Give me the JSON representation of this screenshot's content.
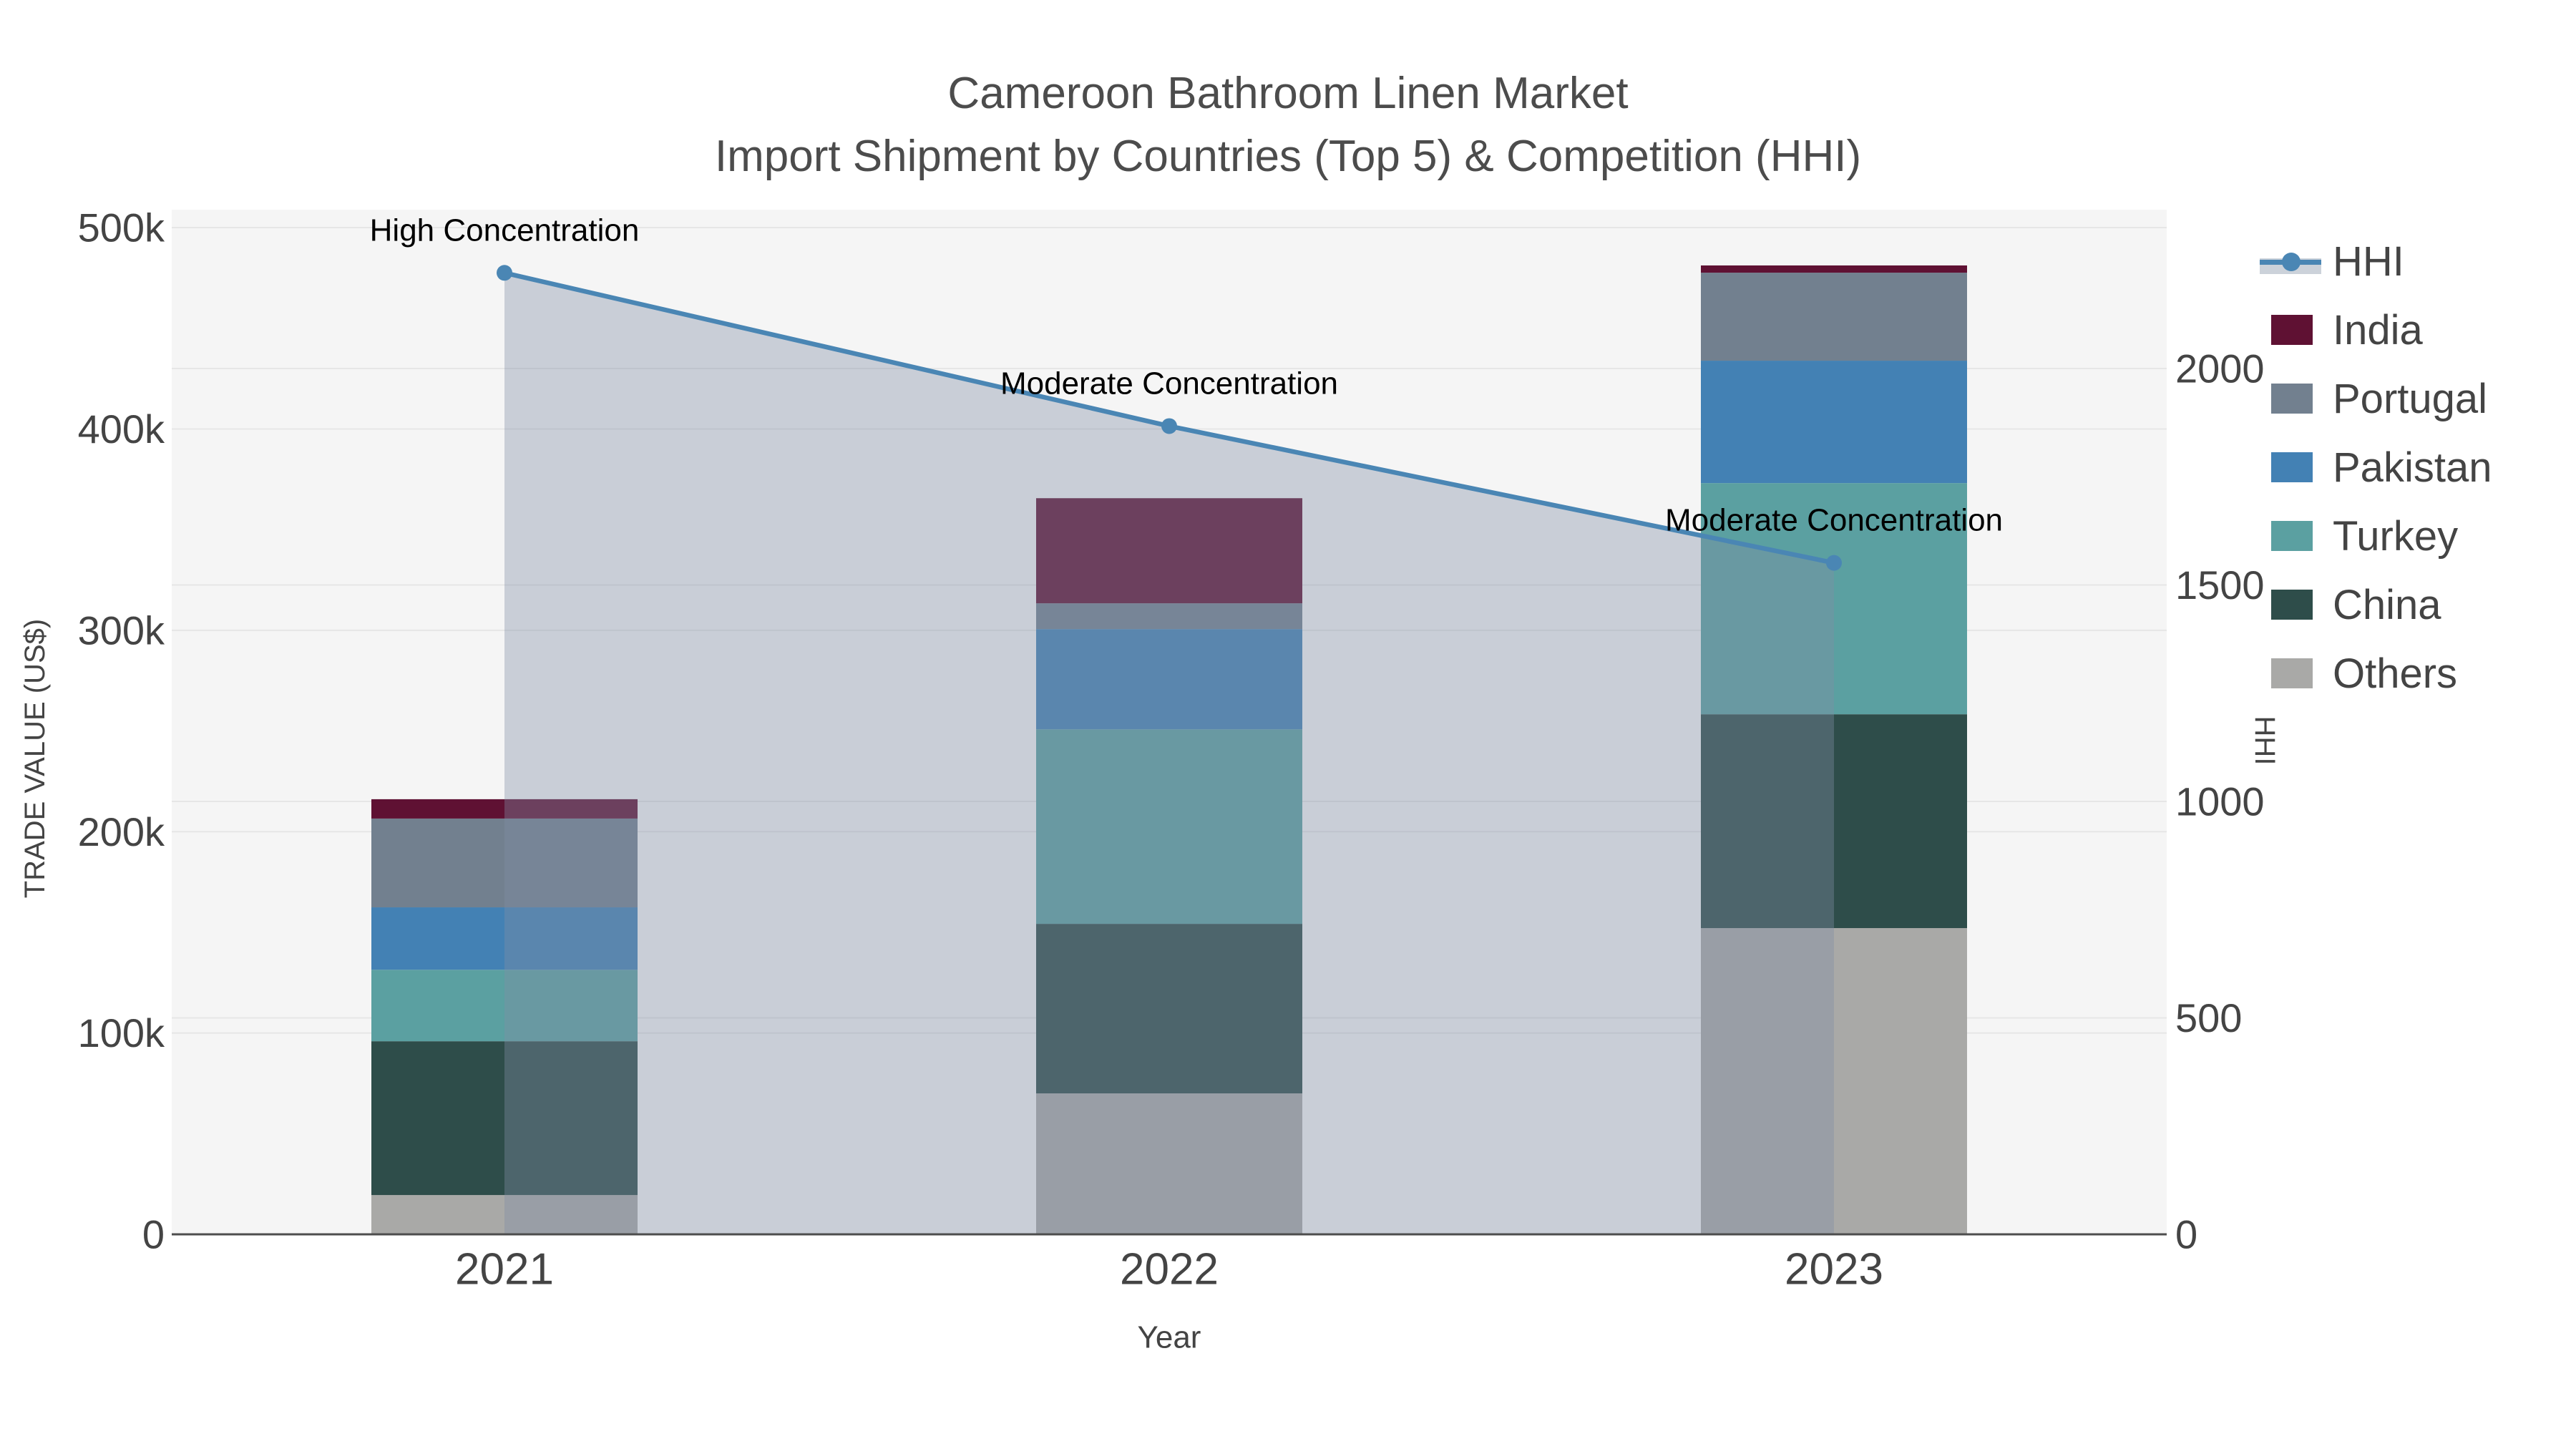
{
  "title": {
    "line1": "Cameroon Bathroom Linen Market",
    "line2": "Import Shipment by Countries (Top 5) & Competition (HHI)"
  },
  "x_axis": {
    "title": "Year",
    "ticks": [
      "2021",
      "2022",
      "2023"
    ]
  },
  "y_left": {
    "title": "TRADE VALUE (US$)",
    "tick_labels": [
      "0",
      "100k",
      "200k",
      "300k",
      "400k",
      "500k"
    ],
    "tick_values_k": [
      0,
      100,
      200,
      300,
      400,
      500
    ]
  },
  "y_right": {
    "title": "HHI",
    "tick_labels": [
      "0",
      "500",
      "1000",
      "1500",
      "2000"
    ],
    "tick_values": [
      0,
      500,
      1000,
      1500,
      2000
    ]
  },
  "legend": {
    "items": [
      {
        "label": "HHI",
        "type": "line-marker",
        "color": "#4a86b4"
      },
      {
        "label": "India",
        "type": "swatch",
        "color": "#5f1133"
      },
      {
        "label": "Portugal",
        "type": "swatch",
        "color": "#72808f"
      },
      {
        "label": "Pakistan",
        "type": "swatch",
        "color": "#4381b4"
      },
      {
        "label": "Turkey",
        "type": "swatch",
        "color": "#5ba0a1"
      },
      {
        "label": "China",
        "type": "swatch",
        "color": "#2e4d4a"
      },
      {
        "label": "Others",
        "type": "swatch",
        "color": "#a9a9a7"
      }
    ]
  },
  "annotations": [
    {
      "text": "High Concentration",
      "year": "2021"
    },
    {
      "text": "Moderate Concentration",
      "year": "2022"
    },
    {
      "text": "Moderate Concentration",
      "year": "2023"
    }
  ],
  "colors": {
    "plot_bg": "#f5f5f5",
    "grid": "#e6e6e6",
    "axis_line": "#4d4d4d",
    "tick_text": "#444444",
    "title_text": "#4c4c4c",
    "annotation_text": "#000000",
    "hhi_line": "#4a86b4",
    "hhi_fill": "rgba(128,142,165,0.38)"
  },
  "chart_data": [
    {
      "type": "bar",
      "stacked": true,
      "note": "series listed bottom-to-top of stack; values in thousand US$",
      "categories": [
        "2021",
        "2022",
        "2023"
      ],
      "series": [
        {
          "name": "Others",
          "color": "#a9a9a7",
          "values_usd_k": [
            19.5,
            70.0,
            152.1
          ]
        },
        {
          "name": "China",
          "color": "#2e4d4a",
          "values_usd_k": [
            76.4,
            84.2,
            106.2
          ]
        },
        {
          "name": "Turkey",
          "color": "#5ba0a1",
          "values_usd_k": [
            35.5,
            96.6,
            114.8
          ]
        },
        {
          "name": "Pakistan",
          "color": "#4381b4",
          "values_usd_k": [
            31.0,
            49.8,
            60.8
          ]
        },
        {
          "name": "Portugal",
          "color": "#72808f",
          "values_usd_k": [
            44.1,
            12.8,
            43.7
          ]
        },
        {
          "name": "India",
          "color": "#5f1133",
          "values_usd_k": [
            9.6,
            52.2,
            3.6
          ]
        }
      ],
      "stack_totals_usd_k": [
        216.1,
        365.6,
        481.2
      ],
      "xlabel": "Year",
      "ylabel": "TRADE VALUE (US$)",
      "ylim_usd_k": [
        0,
        509
      ]
    },
    {
      "type": "line",
      "name": "HHI",
      "x": [
        "2021",
        "2022",
        "2023"
      ],
      "values": [
        2221,
        1867,
        1551
      ],
      "color": "#4a86b4",
      "fill": "tozeroy",
      "ylabel": "HHI",
      "ylim": [
        0,
        2370
      ],
      "point_labels": [
        "High Concentration",
        "Moderate Concentration",
        "Moderate Concentration"
      ]
    }
  ]
}
